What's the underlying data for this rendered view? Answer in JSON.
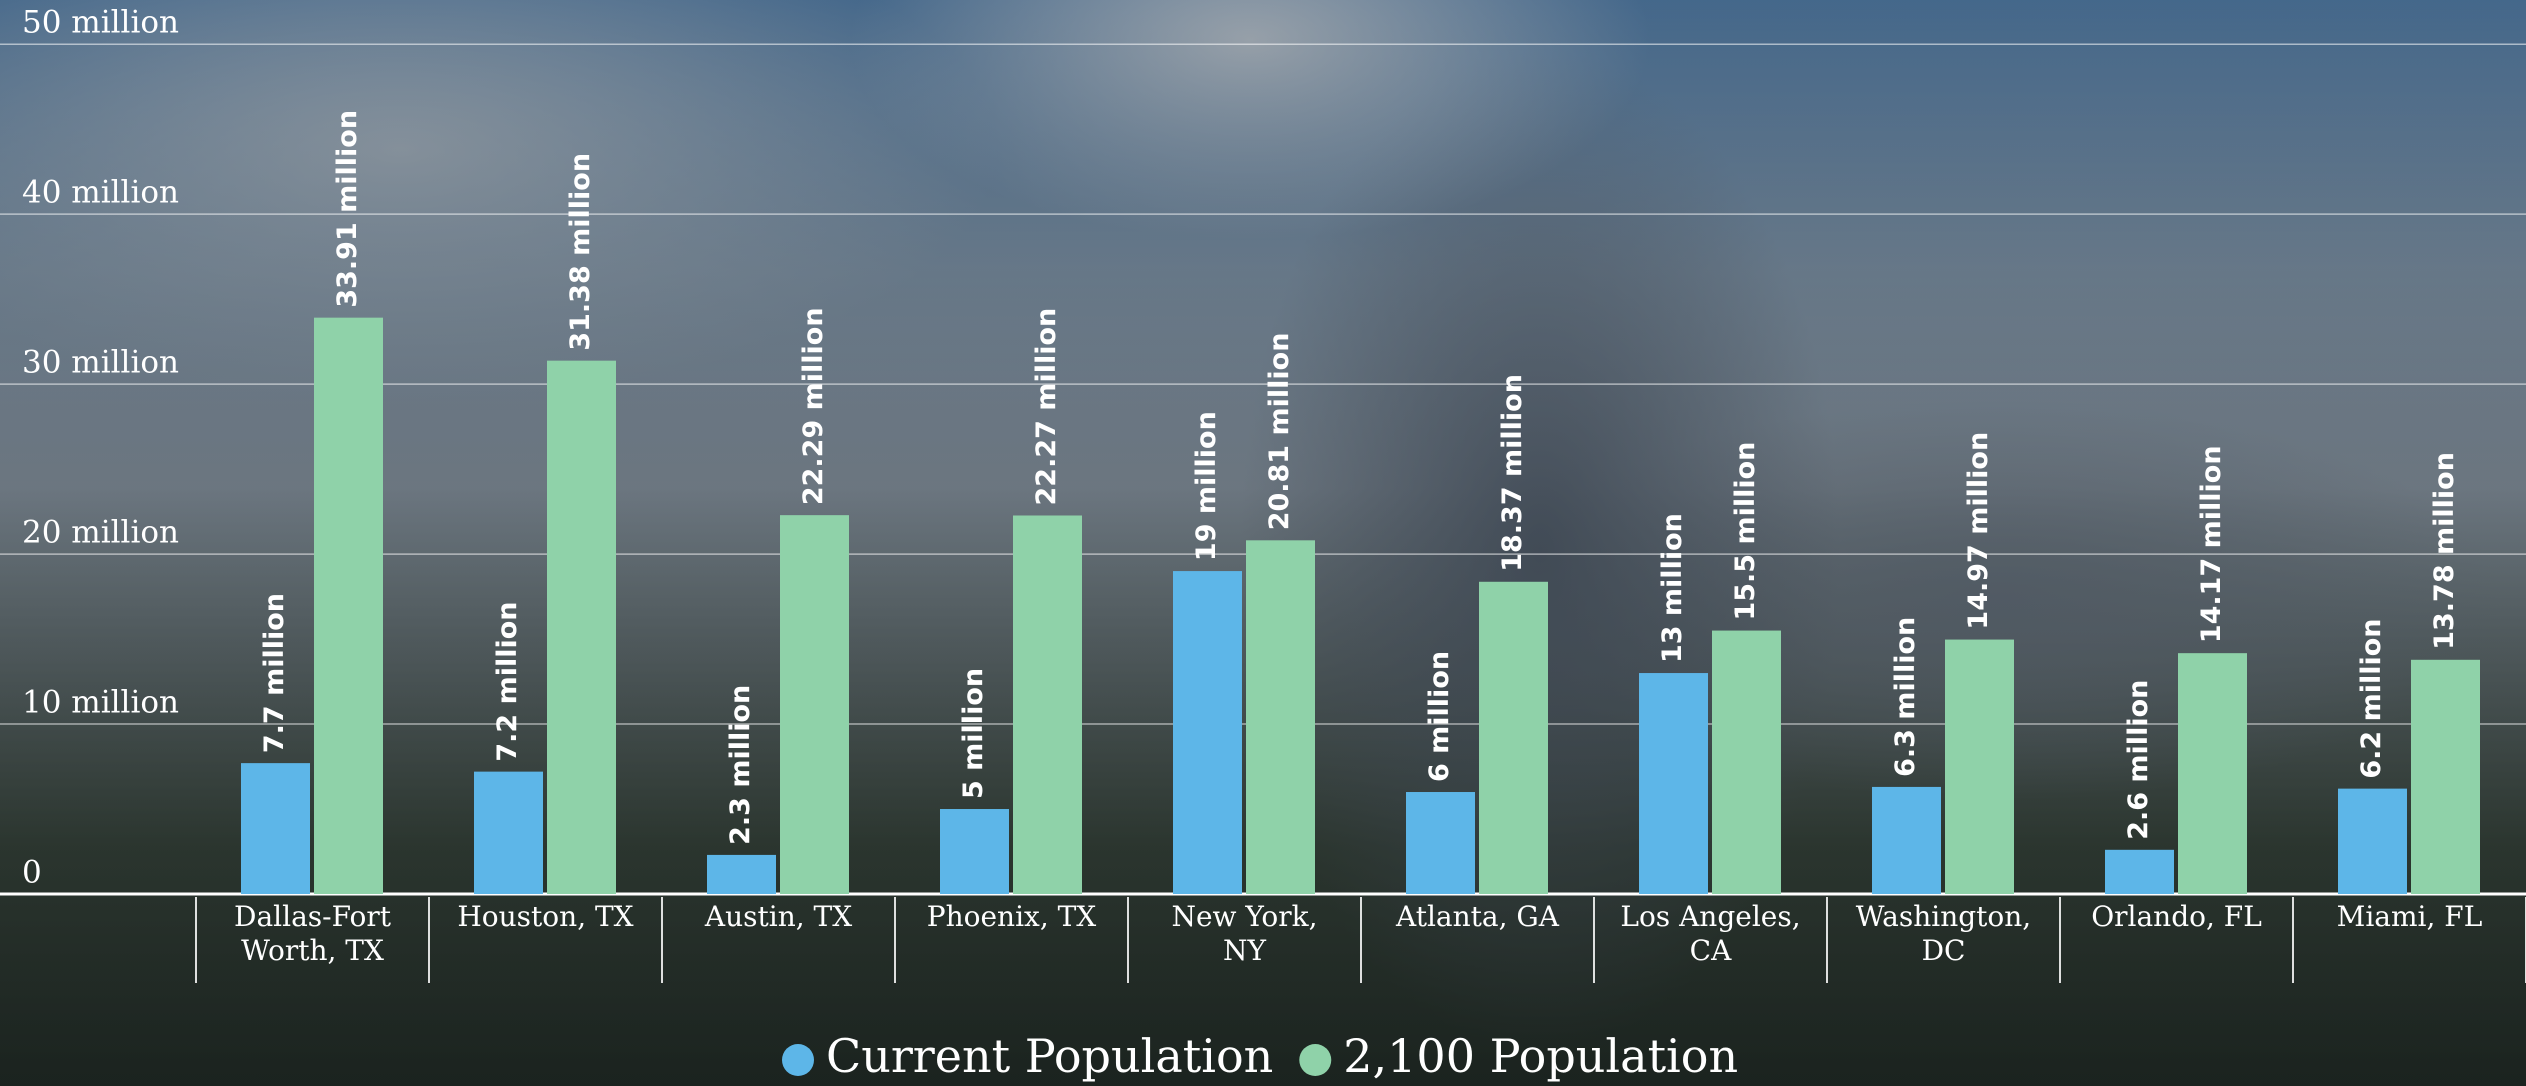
{
  "chart_data": {
    "type": "bar",
    "categories": [
      "Dallas-Fort\nWorth, TX",
      "Houston, TX",
      "Austin, TX",
      "Phoenix, TX",
      "New York,\nNY",
      "Atlanta, GA",
      "Los Angeles,\nCA",
      "Washington,\nDC",
      "Orlando, FL",
      "Miami, FL"
    ],
    "series": [
      {
        "name": "Current Population",
        "color": "#5db6e8",
        "values": [
          7.7,
          7.2,
          2.3,
          5,
          19,
          6,
          13,
          6.3,
          2.6,
          6.2
        ],
        "value_labels": [
          "7.7 million",
          "7.2 million",
          "2.3 million",
          "5 million",
          "19 million",
          "6 million",
          "13 million",
          "6.3 million",
          "2.6 million",
          "6.2 million"
        ]
      },
      {
        "name": "2,100 Population",
        "color": "#8fd2a9",
        "values": [
          33.91,
          31.38,
          22.29,
          22.27,
          20.81,
          18.37,
          15.5,
          14.97,
          14.17,
          13.78
        ],
        "value_labels": [
          "33.91 million",
          "31.38 million",
          "22.29 million",
          "22.27 million",
          "20.81 million",
          "18.37 million",
          "15.5 million",
          "14.97 million",
          "14.17 million",
          "13.78 million"
        ]
      }
    ],
    "ylim": [
      0,
      52.6
    ],
    "yticks": [
      0,
      {
        "value": 10,
        "label": "10 million"
      },
      {
        "value": 20,
        "label": "20 million"
      },
      {
        "value": 30,
        "label": "30 million"
      },
      {
        "value": 40,
        "label": "40 million"
      },
      {
        "value": 50,
        "label": "50 million"
      }
    ],
    "grid": true
  }
}
